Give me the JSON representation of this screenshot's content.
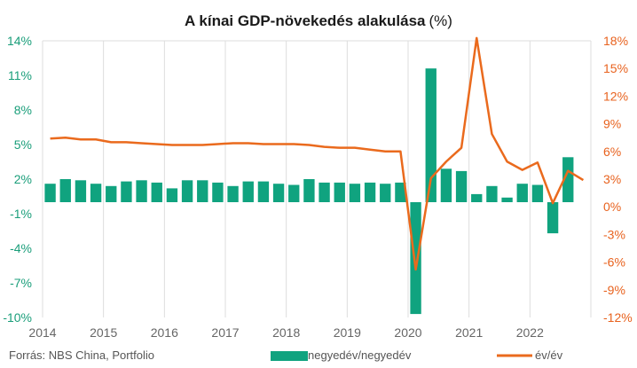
{
  "title": "A kínai GDP-növekedés alakulása",
  "title_unit": "(%)",
  "source": "Forrás: NBS China, Portfolio",
  "colors": {
    "bars": "#10a37f",
    "line": "#ea6a1d",
    "left_axis": "#1a9e7a",
    "right_axis": "#e8621e"
  },
  "chart_data": {
    "type": "bar+line",
    "title": "A kínai GDP-növekedés alakulása (%)",
    "grid": "vertical",
    "legend_placement": "bottom",
    "x_ticks": [
      "2014",
      "2015",
      "2016",
      "2017",
      "2018",
      "2019",
      "2020",
      "2021",
      "2022"
    ],
    "y_left": {
      "ticks": [
        "14%",
        "11%",
        "8%",
        "5%",
        "2%",
        "-1%",
        "-4%",
        "-7%",
        "-10%"
      ],
      "range": [
        -10,
        14
      ]
    },
    "y_right": {
      "ticks": [
        "18%",
        "15%",
        "12%",
        "9%",
        "6%",
        "3%",
        "0%",
        "-3%",
        "-6%",
        "-9%",
        "-12%"
      ],
      "range": [
        -12,
        18
      ]
    },
    "x": [
      "2014 Q1",
      "2014 Q2",
      "2014 Q3",
      "2014 Q4",
      "2015 Q1",
      "2015 Q2",
      "2015 Q3",
      "2015 Q4",
      "2016 Q1",
      "2016 Q2",
      "2016 Q3",
      "2016 Q4",
      "2017 Q1",
      "2017 Q2",
      "2017 Q3",
      "2017 Q4",
      "2018 Q1",
      "2018 Q2",
      "2018 Q3",
      "2018 Q4",
      "2019 Q1",
      "2019 Q2",
      "2019 Q3",
      "2019 Q4",
      "2020 Q1",
      "2020 Q2",
      "2020 Q3",
      "2020 Q4",
      "2021 Q1",
      "2021 Q2",
      "2021 Q3",
      "2021 Q4",
      "2022 Q1",
      "2022 Q2",
      "2022 Q3",
      "2022 Q4"
    ],
    "series": [
      {
        "name": "negyedév/negyedév",
        "type": "bar",
        "axis": "left",
        "values": [
          1.6,
          2.0,
          1.9,
          1.6,
          1.4,
          1.8,
          1.9,
          1.7,
          1.2,
          1.9,
          1.9,
          1.7,
          1.4,
          1.8,
          1.8,
          1.6,
          1.5,
          2.0,
          1.7,
          1.7,
          1.6,
          1.7,
          1.6,
          1.7,
          -9.7,
          11.6,
          2.9,
          2.7,
          0.7,
          1.4,
          0.4,
          1.6,
          1.5,
          -2.7,
          3.9,
          0.0
        ]
      },
      {
        "name": "év/év",
        "type": "line",
        "axis": "right",
        "values": [
          7.4,
          7.5,
          7.3,
          7.3,
          7.0,
          7.0,
          6.9,
          6.8,
          6.7,
          6.7,
          6.7,
          6.8,
          6.9,
          6.9,
          6.8,
          6.8,
          6.8,
          6.7,
          6.5,
          6.4,
          6.4,
          6.2,
          6.0,
          6.0,
          -6.8,
          3.1,
          4.9,
          6.4,
          18.3,
          7.9,
          4.9,
          4.0,
          4.8,
          0.4,
          3.9,
          2.9
        ]
      }
    ]
  }
}
